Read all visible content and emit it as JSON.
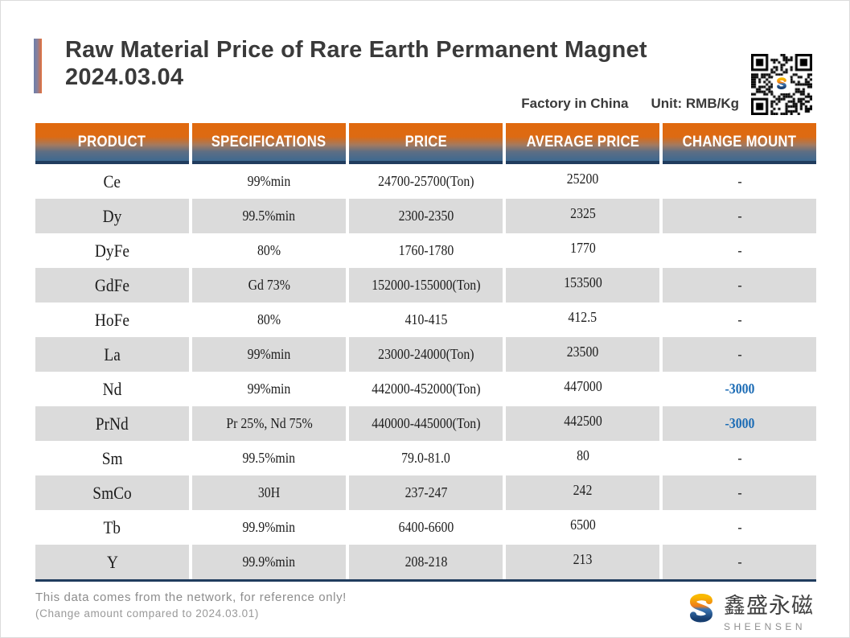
{
  "page": {
    "title_line1": "Raw Material Price of Rare Earth Permanent Magnet",
    "title_line2": "2024.03.04",
    "subtitle_left": "Factory in China",
    "subtitle_right": "Unit: RMB/Kg",
    "footer_line1": "This data comes from the network, for reference only!",
    "footer_line2": "(Change amount compared to 2024.03.01)"
  },
  "brand": {
    "name_cn": "鑫盛永磁",
    "name_en": "SHEENSEN"
  },
  "colors": {
    "header_orange": "#E0690E",
    "header_steel_blue": "#3E6990",
    "header_navy": "#203C5E",
    "row_gray": "#DBDBDB",
    "change_blue": "#1C6CB5",
    "title_text": "#3A3A3A",
    "footer_gray": "#8C8C8C",
    "accent_bar_blue": "#6B7FAC",
    "accent_bar_orange": "#E4703A"
  },
  "table": {
    "headers": [
      "PRODUCT",
      "SPECIFICATIONS",
      "PRICE",
      "AVERAGE PRICE",
      "CHANGE MOUNT"
    ],
    "rows": [
      {
        "product": "Ce",
        "spec": "99%min",
        "price": "24700-25700(Ton)",
        "avg": "25200",
        "change": "-"
      },
      {
        "product": "Dy",
        "spec": "99.5%min",
        "price": "2300-2350",
        "avg": "2325",
        "change": "-"
      },
      {
        "product": "DyFe",
        "spec": "80%",
        "price": "1760-1780",
        "avg": "1770",
        "change": "-"
      },
      {
        "product": "GdFe",
        "spec": "Gd 73%",
        "price": "152000-155000(Ton)",
        "avg": "153500",
        "change": "-"
      },
      {
        "product": "HoFe",
        "spec": "80%",
        "price": "410-415",
        "avg": "412.5",
        "change": "-"
      },
      {
        "product": "La",
        "spec": "99%min",
        "price": "23000-24000(Ton)",
        "avg": "23500",
        "change": "-"
      },
      {
        "product": "Nd",
        "spec": "99%min",
        "price": "442000-452000(Ton)",
        "avg": "447000",
        "change": "-3000"
      },
      {
        "product": "PrNd",
        "spec": "Pr 25%, Nd 75%",
        "price": "440000-445000(Ton)",
        "avg": "442500",
        "change": "-3000"
      },
      {
        "product": "Sm",
        "spec": "99.5%min",
        "price": "79.0-81.0",
        "avg": "80",
        "change": "-"
      },
      {
        "product": "SmCo",
        "spec": "30H",
        "price": "237-247",
        "avg": "242",
        "change": "-"
      },
      {
        "product": "Tb",
        "spec": "99.9%min",
        "price": "6400-6600",
        "avg": "6500",
        "change": "-"
      },
      {
        "product": "Y",
        "spec": "99.9%min",
        "price": "208-218",
        "avg": "213",
        "change": "-"
      }
    ]
  }
}
